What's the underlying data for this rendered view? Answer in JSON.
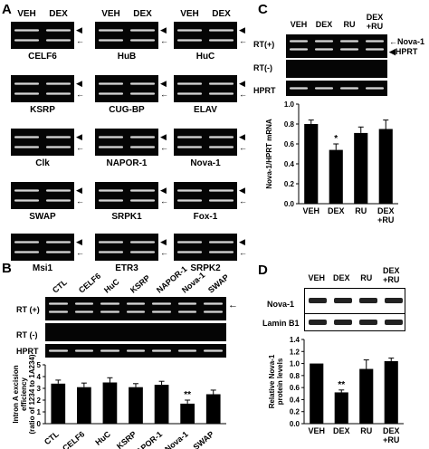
{
  "panelA": {
    "letter": "A",
    "col_veh": "VEH",
    "col_dex": "DEX",
    "genes": [
      "CELF6",
      "HuB",
      "HuC",
      "KSRP",
      "CUG-BP",
      "ELAV",
      "Clk",
      "NAPOR-1",
      "Nova-1",
      "SWAP",
      "SRPK1",
      "Fox-1",
      "Msi1",
      "ETR3",
      "SRPK2"
    ]
  },
  "panelB": {
    "letter": "B",
    "lanes": [
      "CTL",
      "CELF6",
      "HuC",
      "KSRP",
      "NAPOR-1",
      "Nova-1",
      "SWAP"
    ],
    "row_rt_pos": "RT (+)",
    "row_rt_neg": "RT (-)",
    "row_hprt": "HPRT",
    "arrow_right": "←",
    "sig": "**",
    "chart_data": {
      "type": "bar",
      "categories": [
        "CTL",
        "CELF6",
        "HuC",
        "KSRP",
        "NAPOR-1",
        "Nova-1",
        "SWAP"
      ],
      "values": [
        3.4,
        3.1,
        3.5,
        3.1,
        3.3,
        1.7,
        2.5
      ],
      "errors": [
        0.3,
        0.35,
        0.4,
        0.3,
        0.3,
        0.3,
        0.35
      ],
      "ylabel_line1": "Intron A excision",
      "ylabel_line2": "efficiency",
      "ylabel_line3": "(ratio of 1234 to 1A234)",
      "ylim": [
        0,
        5
      ],
      "yticks": [
        "0",
        "1",
        "2",
        "3",
        "4",
        "5"
      ]
    }
  },
  "panelC": {
    "letter": "C",
    "lanes": [
      "VEH",
      "DEX",
      "RU",
      "DEX\n+RU"
    ],
    "row_rt_pos": "RT(+)",
    "row_rt_neg": "RT(-)",
    "row_hprt": "HPRT",
    "band1": "Nova-1",
    "band2": "HPRT",
    "sig": "*",
    "chart_data": {
      "type": "bar",
      "categories": [
        "VEH",
        "DEX",
        "RU",
        "DEX\n+RU"
      ],
      "values": [
        0.8,
        0.54,
        0.71,
        0.75
      ],
      "errors": [
        0.04,
        0.06,
        0.06,
        0.09
      ],
      "ylabel": "Nova-1/HPRT mRNA",
      "ylim": [
        0,
        1.0
      ],
      "yticks": [
        "0.0",
        "0.2",
        "0.4",
        "0.6",
        "0.8",
        "1.0"
      ]
    }
  },
  "panelD": {
    "letter": "D",
    "lanes": [
      "VEH",
      "DEX",
      "RU",
      "DEX\n+RU"
    ],
    "row_nova": "Nova-1",
    "row_lamin": "Lamin B1",
    "sig": "**",
    "chart_data": {
      "type": "bar",
      "categories": [
        "VEH",
        "DEX",
        "RU",
        "DEX\n+RU"
      ],
      "values": [
        1.0,
        0.52,
        0.91,
        1.04
      ],
      "errors": [
        0.0,
        0.04,
        0.15,
        0.05
      ],
      "ylabel_line1": "Relative Nova-1",
      "ylabel_line2": "protein levels",
      "ylim": [
        0,
        1.4
      ],
      "yticks": [
        "0.0",
        "0.2",
        "0.4",
        "0.6",
        "0.8",
        "1.0",
        "1.2",
        "1.4"
      ]
    }
  }
}
